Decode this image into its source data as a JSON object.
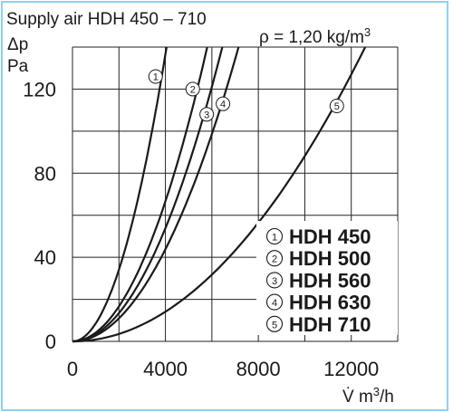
{
  "chart_data": {
    "type": "line",
    "title": "Supply air HDH 450 – 710",
    "density_note": "ρ = 1,20 kg/m",
    "density_exp": "3",
    "ylabel_symbol": "Δp",
    "ylabel_unit": "Pa",
    "xlabel_pre": "V̇ m",
    "xlabel_exp": "3",
    "xlabel_post": "/h",
    "xlim": [
      0,
      14000
    ],
    "ylim": [
      0,
      140
    ],
    "xticks": [
      {
        "value": 0,
        "label": "0"
      },
      {
        "value": 4000,
        "label": "4000"
      },
      {
        "value": 8000,
        "label": "8000"
      },
      {
        "value": 12000,
        "label": "12000"
      }
    ],
    "yticks": [
      {
        "value": 0,
        "label": "0"
      },
      {
        "value": 40,
        "label": "40"
      },
      {
        "value": 80,
        "label": "80"
      },
      {
        "value": 120,
        "label": "120"
      }
    ],
    "grid_x": [
      2000,
      4000,
      6000,
      8000,
      10000,
      12000,
      14000
    ],
    "grid_y": [
      20,
      40,
      60,
      80,
      100,
      120,
      140
    ],
    "grid": true,
    "legend_position": "bottom-right",
    "series": [
      {
        "id": "1",
        "symbol": "①",
        "name": "HDH 450",
        "x": [
          0,
          3500,
          4050
        ],
        "y": [
          0,
          126,
          140
        ],
        "marker_point": [
          3500,
          126
        ]
      },
      {
        "id": "2",
        "symbol": "②",
        "name": "HDH 500",
        "x": [
          0,
          5100,
          5800
        ],
        "y": [
          0,
          120,
          140
        ],
        "marker_point": [
          5100,
          120
        ]
      },
      {
        "id": "3",
        "symbol": "③",
        "name": "HDH 560",
        "x": [
          0,
          5700,
          6450
        ],
        "y": [
          0,
          108,
          140
        ],
        "marker_point": [
          5700,
          108
        ]
      },
      {
        "id": "4",
        "symbol": "④",
        "name": "HDH 630",
        "x": [
          0,
          6400,
          7150
        ],
        "y": [
          0,
          113,
          140
        ],
        "marker_point": [
          6400,
          113
        ]
      },
      {
        "id": "5",
        "symbol": "⑤",
        "name": "HDH 710",
        "x": [
          0,
          11300,
          12600
        ],
        "y": [
          0,
          112,
          140
        ],
        "marker_point": [
          11300,
          112
        ]
      }
    ]
  }
}
